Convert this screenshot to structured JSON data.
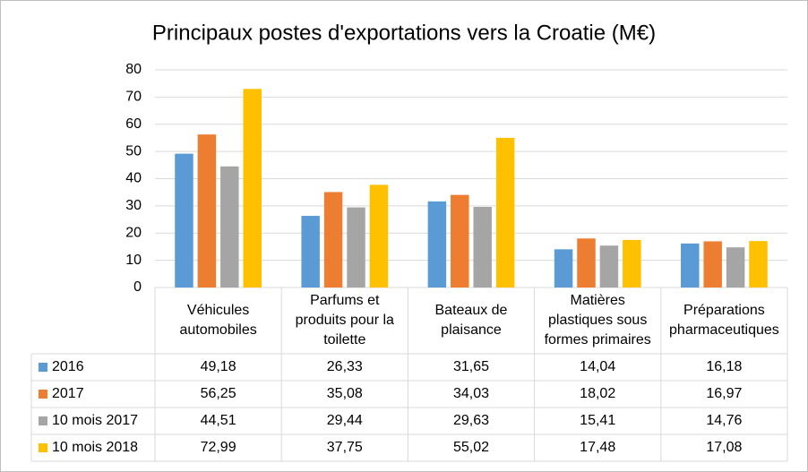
{
  "chart_data": {
    "type": "bar",
    "title": "Principaux postes d'exportations vers la Croatie (M€)",
    "categories": [
      "Véhicules automobiles",
      "Parfums et produits pour la toilette",
      "Bateaux de plaisance",
      "Matières plastiques sous formes primaires",
      "Préparations pharmaceutiques"
    ],
    "series": [
      {
        "name": "2016",
        "color": "#5b9bd5",
        "values": [
          49.18,
          26.33,
          31.65,
          14.04,
          16.18
        ],
        "value_labels": [
          "49,18",
          "26,33",
          "31,65",
          "14,04",
          "16,18"
        ]
      },
      {
        "name": "2017",
        "color": "#ed7d31",
        "values": [
          56.25,
          35.08,
          34.03,
          18.02,
          16.97
        ],
        "value_labels": [
          "56,25",
          "35,08",
          "34,03",
          "18,02",
          "16,97"
        ]
      },
      {
        "name": "10 mois 2017",
        "color": "#a5a5a5",
        "values": [
          44.51,
          29.44,
          29.63,
          15.41,
          14.76
        ],
        "value_labels": [
          "44,51",
          "29,44",
          "29,63",
          "15,41",
          "14,76"
        ]
      },
      {
        "name": "10 mois 2018",
        "color": "#ffc000",
        "values": [
          72.99,
          37.75,
          55.02,
          17.48,
          17.08
        ],
        "value_labels": [
          "72,99",
          "37,75",
          "55,02",
          "17,48",
          "17,08"
        ]
      }
    ],
    "ylim": [
      0,
      80
    ],
    "yticks": [
      0,
      10,
      20,
      30,
      40,
      50,
      60,
      70,
      80
    ],
    "grid": true
  }
}
